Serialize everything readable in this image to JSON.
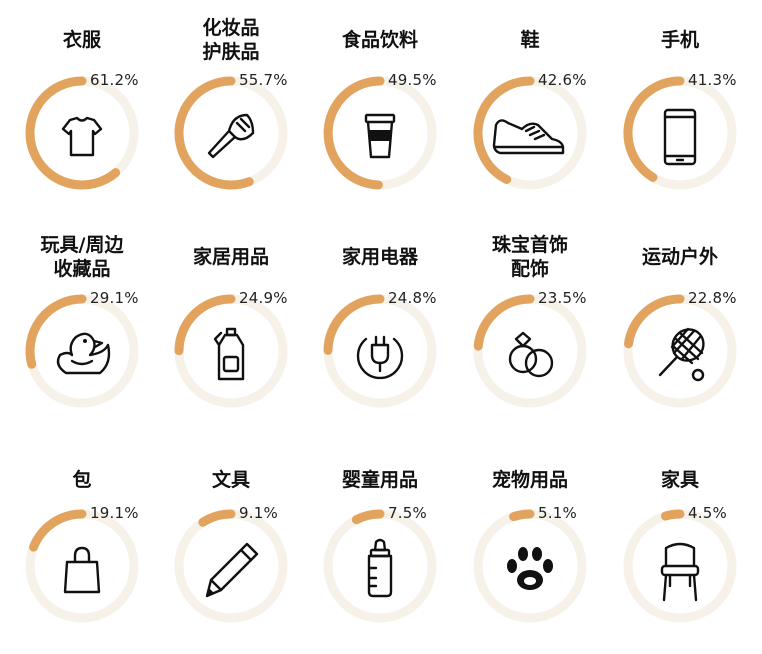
{
  "chart_data": {
    "type": "pie",
    "style": "radial-progress-rings",
    "track_color": "#f6f2ea",
    "value_color": "#e2a35e",
    "items": [
      {
        "label": "衣服",
        "value": 61.2,
        "value_label": "61.2%",
        "icon": "t-shirt-icon"
      },
      {
        "label": "化妆品\n护肤品",
        "value": 55.7,
        "value_label": "55.7%",
        "icon": "makeup-brush-icon"
      },
      {
        "label": "食品饮料",
        "value": 49.5,
        "value_label": "49.5%",
        "icon": "drink-cup-icon"
      },
      {
        "label": "鞋",
        "value": 42.6,
        "value_label": "42.6%",
        "icon": "sneaker-icon"
      },
      {
        "label": "手机",
        "value": 41.3,
        "value_label": "41.3%",
        "icon": "smartphone-icon"
      },
      {
        "label": "玩具/周边\n收藏品",
        "value": 29.1,
        "value_label": "29.1%",
        "icon": "rubber-duck-icon"
      },
      {
        "label": "家居用品",
        "value": 24.9,
        "value_label": "24.9%",
        "icon": "detergent-bottle-icon"
      },
      {
        "label": "家用电器",
        "value": 24.8,
        "value_label": "24.8%",
        "icon": "power-plug-icon"
      },
      {
        "label": "珠宝首饰\n配饰",
        "value": 23.5,
        "value_label": "23.5%",
        "icon": "rings-icon"
      },
      {
        "label": "运动户外",
        "value": 22.8,
        "value_label": "22.8%",
        "icon": "tennis-racket-icon"
      },
      {
        "label": "包",
        "value": 19.1,
        "value_label": "19.1%",
        "icon": "shopping-bag-icon"
      },
      {
        "label": "文具",
        "value": 9.1,
        "value_label": "9.1%",
        "icon": "pencil-icon"
      },
      {
        "label": "婴童用品",
        "value": 7.5,
        "value_label": "7.5%",
        "icon": "baby-bottle-icon"
      },
      {
        "label": "宠物用品",
        "value": 5.1,
        "value_label": "5.1%",
        "icon": "paw-icon"
      },
      {
        "label": "家具",
        "value": 4.5,
        "value_label": "4.5%",
        "icon": "chair-icon"
      }
    ]
  }
}
